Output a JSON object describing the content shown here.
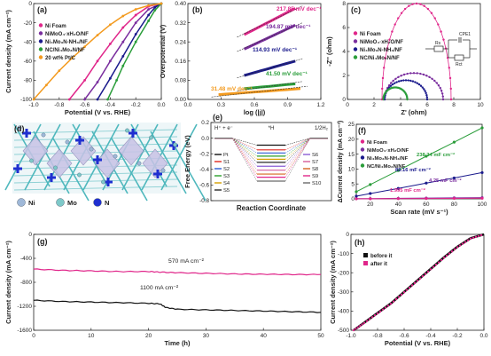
{
  "panels": {
    "a": {
      "letter": "(a)"
    },
    "b": {
      "letter": "(b)"
    },
    "c": {
      "letter": "(c)"
    },
    "d": {
      "letter": "(d)"
    },
    "e": {
      "letter": "(e)"
    },
    "f": {
      "letter": "(f)"
    },
    "g": {
      "letter": "(g)"
    },
    "h": {
      "letter": "(h)"
    }
  },
  "structure_d": {
    "legend": [
      "Ni",
      "Mo",
      "N"
    ],
    "colors": {
      "ni": "#9fb8d8",
      "mo": "#7ec9c9",
      "n": "#1f2fd0",
      "bond": "#4fb8bd"
    }
  },
  "chart_data": [
    {
      "panel": "a",
      "type": "line",
      "xlabel": "Potential (V vs. RHE)",
      "ylabel": "Current density (mA cm⁻²)",
      "xlim": [
        -1.0,
        0.0
      ],
      "ylim": [
        -100,
        0
      ],
      "xticks": [
        "-1.0",
        "-0.8",
        "-0.6",
        "-0.4",
        "-0.2",
        "0.0"
      ],
      "yticks": [
        "0",
        "-20",
        "-40",
        "-60",
        "-80",
        "-100"
      ],
      "legend": [
        "Ni Foam",
        "NiMoO₄·xH₂O/NF",
        "Ni₄Mo₃N-NH₃/NF",
        "NC/Ni₄Mo₃N/NF",
        "20 wt% Pt/C"
      ],
      "series": [
        {
          "name": "Ni Foam",
          "color": "#e0268a",
          "x": [
            -0.72,
            -0.6,
            -0.5,
            -0.4,
            -0.3,
            -0.2,
            -0.1,
            0.0
          ],
          "y": [
            -100,
            -80,
            -60,
            -42,
            -25,
            -12,
            -3,
            0
          ]
        },
        {
          "name": "NiMoO₄·xH₂O/NF",
          "color": "#7a2e9e",
          "x": [
            -0.6,
            -0.5,
            -0.4,
            -0.3,
            -0.2,
            -0.1,
            0.0
          ],
          "y": [
            -100,
            -82,
            -60,
            -40,
            -20,
            -6,
            0
          ]
        },
        {
          "name": "Ni₄Mo₃N-NH₃/NF",
          "color": "#1a1a8c",
          "x": [
            -0.5,
            -0.4,
            -0.3,
            -0.2,
            -0.1,
            -0.05,
            0.0
          ],
          "y": [
            -100,
            -78,
            -55,
            -32,
            -12,
            -4,
            0
          ]
        },
        {
          "name": "NC/Ni₄Mo₃N/NF",
          "color": "#2a9d3a",
          "x": [
            -0.42,
            -0.35,
            -0.3,
            -0.2,
            -0.1,
            -0.05,
            0.0
          ],
          "y": [
            -100,
            -80,
            -65,
            -40,
            -18,
            -7,
            0
          ]
        },
        {
          "name": "20 wt% Pt/C",
          "color": "#f39a1e",
          "x": [
            -1.0,
            -0.9,
            -0.8,
            -0.7,
            -0.6,
            -0.5,
            -0.4,
            -0.3,
            -0.2,
            -0.1,
            0.0
          ],
          "y": [
            -100,
            -85,
            -70,
            -57,
            -45,
            -33,
            -22,
            -13,
            -6,
            -2,
            0
          ]
        }
      ]
    },
    {
      "panel": "b",
      "type": "line",
      "xlabel": "log (|j|)",
      "ylabel": "Overpotential (V)",
      "xlim": [
        0.0,
        1.3
      ],
      "ylim": [
        0.0,
        0.4
      ],
      "xticks": [
        "0.0",
        "0.3",
        "0.6",
        "0.9",
        "1.2"
      ],
      "yticks": [
        "0.00",
        "0.08",
        "0.16",
        "0.24",
        "0.32",
        "0.40"
      ],
      "annotations": [
        "217.85 mV dec⁻¹",
        "194.87 mV dec⁻¹",
        "114.93 mV dec⁻¹",
        "41.50 mV dec⁻¹",
        "31.48 mV dec⁻¹"
      ],
      "series": [
        {
          "name": "Ni Foam",
          "color": "#e0268a",
          "x": [
            0.55,
            1.05
          ],
          "y": [
            0.27,
            0.38
          ]
        },
        {
          "name": "NiMoO₄·xH₂O/NF",
          "color": "#7a2e9e",
          "x": [
            0.55,
            1.05
          ],
          "y": [
            0.21,
            0.31
          ]
        },
        {
          "name": "Ni₄Mo₃N-NH₃/NF",
          "color": "#1a1a8c",
          "x": [
            0.55,
            1.05
          ],
          "y": [
            0.1,
            0.16
          ]
        },
        {
          "name": "NC/Ni₄Mo₃N/NF",
          "color": "#2a9d3a",
          "x": [
            0.55,
            1.05
          ],
          "y": [
            0.045,
            0.065
          ]
        },
        {
          "name": "20 wt% Pt/C",
          "color": "#f39a1e",
          "x": [
            0.3,
            1.1
          ],
          "y": [
            0.02,
            0.045
          ]
        }
      ]
    },
    {
      "panel": "c",
      "type": "scatter",
      "xlabel": "Z' (ohm)",
      "ylabel": "-Z'' (ohm)",
      "xlim": [
        0,
        10
      ],
      "ylim": [
        0,
        8
      ],
      "xticks": [
        "0",
        "2",
        "4",
        "6",
        "8",
        "10"
      ],
      "yticks": [
        "0",
        "2",
        "4",
        "6",
        "8"
      ],
      "legend": [
        "Ni Foam",
        "NiMoO₄·xH₂O/NF",
        "Ni₄Mo₃N-NH₃/NF",
        "NC/Ni₄Mo₃N/NF"
      ],
      "circuit": {
        "rs": "Rs",
        "cpe": "CPE1",
        "rct": "Rct"
      },
      "series": [
        {
          "name": "Ni Foam",
          "color": "#e0268a",
          "center": 5.2,
          "radius": 2.6,
          "height": 8.0
        },
        {
          "name": "NiMoO₄·xH₂O/NF",
          "color": "#7a2e9e",
          "center": 5.0,
          "radius": 2.2,
          "height": 2.2
        },
        {
          "name": "Ni₄Mo₃N-NH₃/NF",
          "color": "#1a1a8c",
          "center": 4.4,
          "radius": 1.6,
          "height": 1.6
        },
        {
          "name": "NC/Ni₄Mo₃N/NF",
          "color": "#2a9d3a",
          "center": 3.6,
          "radius": 0.9,
          "height": 1.0
        }
      ]
    },
    {
      "panel": "e",
      "type": "line",
      "xlabel": "Reaction Coordinate",
      "ylabel": "Free Energy (eV)",
      "ylim": [
        -0.8,
        0.2
      ],
      "yticks": [
        "0.2",
        "0.0",
        "-0.2",
        "-0.4",
        "-0.6",
        "-0.8"
      ],
      "top_labels": [
        "H⁺ + e⁻",
        "*H",
        "1/2H₂"
      ],
      "legend_left": [
        "Pt",
        "S1",
        "S2",
        "S3",
        "S4",
        "S5"
      ],
      "legend_right": [
        "S6",
        "S7",
        "S8",
        "S9",
        "S10"
      ],
      "colors": [
        "#111111",
        "#e0261e",
        "#2a5cd6",
        "#2aa02a",
        "#d6a000",
        "#2a2a2a",
        "#8a5cd6",
        "#d65c9a",
        "#d6641e",
        "#e0268a",
        "#6a6a6a"
      ],
      "levels": [
        -0.09,
        -0.15,
        -0.19,
        -0.23,
        -0.27,
        -0.31,
        -0.36,
        -0.41,
        -0.46,
        -0.5,
        -0.55
      ]
    },
    {
      "panel": "f",
      "type": "line",
      "xlabel": "Scan rate (mV s⁻¹)",
      "ylabel": "ΔCurrent density (mA cm⁻²)",
      "xlim": [
        10,
        100
      ],
      "ylim": [
        0,
        25
      ],
      "xticks": [
        "20",
        "40",
        "60",
        "80",
        "100"
      ],
      "yticks": [
        "0",
        "5",
        "10",
        "15",
        "20",
        "25"
      ],
      "legend": [
        "Ni Foam",
        "NiMoO₄·xH₂O/NF",
        "Ni₄Mo₃N-NH₃/NF",
        "NC/Ni₄Mo₃N/NF"
      ],
      "annotations": [
        "238.24 mF cm⁻²",
        "88.16 mF cm⁻²",
        "4.25 mF cm⁻²",
        "1.995 mF cm⁻²"
      ],
      "series": [
        {
          "name": "NC/Ni₄Mo₃N/NF",
          "color": "#2a9d3a",
          "x": [
            10,
            20,
            40,
            60,
            80,
            100
          ],
          "y": [
            2.4,
            4.8,
            9.5,
            14.3,
            19.0,
            23.8
          ]
        },
        {
          "name": "Ni₄Mo₃N-NH₃/NF",
          "color": "#1a1a8c",
          "x": [
            10,
            20,
            40,
            60,
            80,
            100
          ],
          "y": [
            0.9,
            1.8,
            3.5,
            5.3,
            7.0,
            8.8
          ]
        },
        {
          "name": "NiMoO₄·xH₂O/NF",
          "color": "#7a2e9e",
          "x": [
            10,
            20,
            40,
            60,
            80,
            100
          ],
          "y": [
            0.05,
            0.09,
            0.17,
            0.26,
            0.34,
            0.43
          ]
        },
        {
          "name": "Ni Foam",
          "color": "#e0268a",
          "x": [
            10,
            20,
            40,
            60,
            80,
            100
          ],
          "y": [
            0.02,
            0.04,
            0.08,
            0.12,
            0.16,
            0.2
          ]
        }
      ]
    },
    {
      "panel": "g",
      "type": "line",
      "xlabel": "Time (h)",
      "ylabel": "Current density (mA cm⁻²)",
      "xlim": [
        0,
        50
      ],
      "ylim": [
        -1600,
        0
      ],
      "xticks": [
        "0",
        "10",
        "20",
        "30",
        "40",
        "50"
      ],
      "yticks": [
        "0",
        "-400",
        "-800",
        "-1200",
        "-1600"
      ],
      "annotations": [
        "570 mA cm⁻²",
        "1100 mA cm⁻²"
      ],
      "series": [
        {
          "name": "570",
          "color": "#e0268a",
          "x": [
            0,
            5,
            10,
            15,
            20,
            22,
            25,
            30,
            35,
            40,
            45,
            50
          ],
          "y": [
            -580,
            -600,
            -610,
            -620,
            -620,
            -630,
            -640,
            -650,
            -660,
            -665,
            -670,
            -670
          ]
        },
        {
          "name": "1100",
          "color": "#111111",
          "x": [
            0,
            5,
            10,
            15,
            20,
            22,
            23,
            25,
            30,
            35,
            40,
            45,
            50
          ],
          "y": [
            -1100,
            -1120,
            -1130,
            -1140,
            -1150,
            -1160,
            -1220,
            -1250,
            -1260,
            -1270,
            -1280,
            -1290,
            -1300
          ]
        }
      ]
    },
    {
      "panel": "h",
      "type": "line",
      "xlabel": "Potential (V vs. RHE)",
      "ylabel": "Current density (mA cm⁻²)",
      "xlim": [
        -1.0,
        0.0
      ],
      "ylim": [
        -500,
        0
      ],
      "xticks": [
        "-1.0",
        "-0.8",
        "-0.6",
        "-0.4",
        "-0.2",
        "0.0"
      ],
      "yticks": [
        "0",
        "-100",
        "-200",
        "-300",
        "-400",
        "-500"
      ],
      "legend": [
        "before it",
        "after it"
      ],
      "series": [
        {
          "name": "before it",
          "color": "#111111",
          "x": [
            -0.98,
            -0.9,
            -0.8,
            -0.7,
            -0.6,
            -0.5,
            -0.4,
            -0.3,
            -0.2,
            -0.1,
            0.0
          ],
          "y": [
            -500,
            -460,
            -410,
            -360,
            -300,
            -240,
            -180,
            -120,
            -65,
            -20,
            0
          ]
        },
        {
          "name": "after it",
          "color": "#e0268a",
          "x": [
            -0.98,
            -0.9,
            -0.8,
            -0.7,
            -0.6,
            -0.5,
            -0.4,
            -0.3,
            -0.2,
            -0.1,
            0.0
          ],
          "y": [
            -500,
            -462,
            -412,
            -362,
            -302,
            -242,
            -182,
            -122,
            -67,
            -22,
            0
          ]
        }
      ]
    }
  ]
}
